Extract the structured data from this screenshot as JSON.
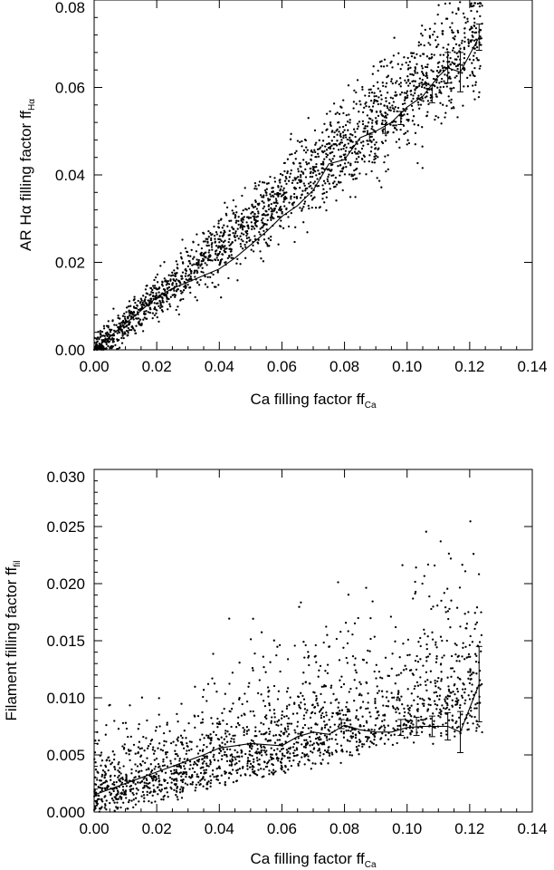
{
  "chart_data": [
    {
      "type": "scatter",
      "title": "",
      "xlabel": {
        "main": "Ca filling factor ff",
        "sub": "Ca"
      },
      "ylabel": {
        "main": "AR Hα filling factor ff",
        "sub": "Hα"
      },
      "xlim": [
        0,
        0.14
      ],
      "ylim": [
        0,
        0.08
      ],
      "x_ticks": [
        "0.00",
        "0.02",
        "0.04",
        "0.06",
        "0.08",
        "0.10",
        "0.12",
        "0.14"
      ],
      "y_ticks": [
        "0.00",
        "0.02",
        "0.04",
        "0.06",
        "0.08"
      ],
      "grid": false,
      "scatter_model": {
        "count": 2100,
        "xmax": 0.124,
        "slope": 0.585,
        "noise": 0.0045,
        "noise_growth": 0.045,
        "ymin": 0,
        "ymax": 0.0795,
        "seed": 7
      },
      "trend": {
        "x": [
          0.0,
          0.005,
          0.01,
          0.015,
          0.02,
          0.025,
          0.03,
          0.035,
          0.04,
          0.045,
          0.05,
          0.055,
          0.06,
          0.065,
          0.07,
          0.075,
          0.08,
          0.085,
          0.09,
          0.095,
          0.1,
          0.105,
          0.11,
          0.113,
          0.117,
          0.123
        ],
        "y": [
          0.0,
          0.003,
          0.006,
          0.009,
          0.012,
          0.014,
          0.0155,
          0.017,
          0.0185,
          0.021,
          0.024,
          0.027,
          0.0305,
          0.033,
          0.0365,
          0.0425,
          0.0435,
          0.0485,
          0.05,
          0.052,
          0.0555,
          0.058,
          0.0625,
          0.0645,
          0.0635,
          0.0715
        ]
      },
      "error_bars": [
        {
          "x": 0.088,
          "y": 0.0485,
          "err": 0.0008
        },
        {
          "x": 0.093,
          "y": 0.0505,
          "err": 0.001
        },
        {
          "x": 0.098,
          "y": 0.053,
          "err": 0.0015
        },
        {
          "x": 0.108,
          "y": 0.0585,
          "err": 0.002
        },
        {
          "x": 0.113,
          "y": 0.0645,
          "err": 0.0035
        },
        {
          "x": 0.117,
          "y": 0.0635,
          "err": 0.0045
        },
        {
          "x": 0.123,
          "y": 0.0715,
          "err": 0.003
        }
      ]
    },
    {
      "type": "scatter",
      "title": "",
      "xlabel": {
        "main": "Ca filling factor ff",
        "sub": "Ca"
      },
      "ylabel": {
        "main": "Filament filling factor ff",
        "sub": "fil"
      },
      "xlim": [
        0,
        0.14
      ],
      "ylim": [
        0,
        0.03
      ],
      "x_ticks": [
        "0.00",
        "0.02",
        "0.04",
        "0.06",
        "0.08",
        "0.10",
        "0.12",
        "0.14"
      ],
      "y_ticks": [
        "0.000",
        "0.005",
        "0.010",
        "0.015",
        "0.020",
        "0.025",
        "0.030"
      ],
      "grid": false,
      "scatter_model": {
        "count": 1900,
        "xmax": 0.124,
        "slope": 0.06,
        "noise": 0.0029,
        "noise_growth": 0.03,
        "ymin": 0,
        "ymax": 0.0295,
        "seed": 31
      },
      "trend": {
        "x": [
          0.0,
          0.005,
          0.01,
          0.015,
          0.02,
          0.025,
          0.03,
          0.035,
          0.04,
          0.045,
          0.05,
          0.055,
          0.06,
          0.065,
          0.07,
          0.075,
          0.08,
          0.085,
          0.09,
          0.095,
          0.1,
          0.105,
          0.11,
          0.113,
          0.117,
          0.123
        ],
        "y": [
          0.0015,
          0.002,
          0.0025,
          0.003,
          0.0035,
          0.004,
          0.0045,
          0.005,
          0.0056,
          0.0058,
          0.006,
          0.0059,
          0.0058,
          0.0066,
          0.007,
          0.0068,
          0.0076,
          0.0072,
          0.007,
          0.007,
          0.0074,
          0.0075,
          0.0075,
          0.0075,
          0.007,
          0.0112
        ]
      },
      "error_bars": [
        {
          "x": 0.079,
          "y": 0.0077,
          "err": 0.0004
        },
        {
          "x": 0.098,
          "y": 0.0074,
          "err": 0.0007
        },
        {
          "x": 0.103,
          "y": 0.0075,
          "err": 0.0008
        },
        {
          "x": 0.108,
          "y": 0.0075,
          "err": 0.0009
        },
        {
          "x": 0.113,
          "y": 0.0075,
          "err": 0.0012
        },
        {
          "x": 0.117,
          "y": 0.007,
          "err": 0.0018
        },
        {
          "x": 0.123,
          "y": 0.0112,
          "err": 0.0033
        }
      ]
    }
  ]
}
